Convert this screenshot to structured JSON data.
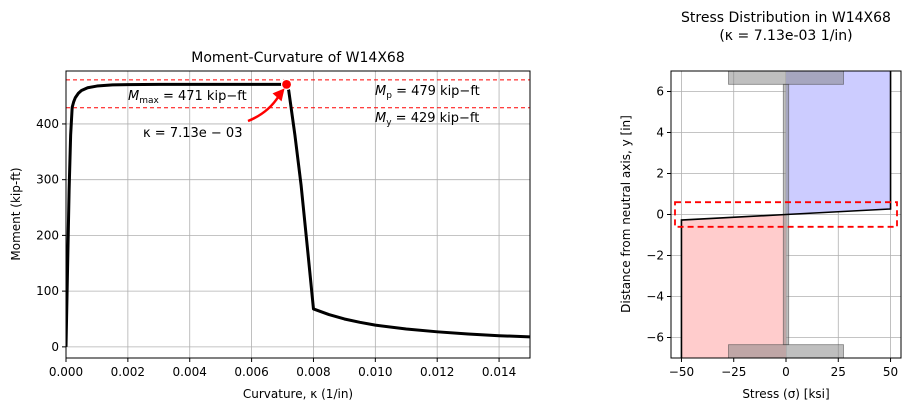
{
  "chart_data": [
    {
      "type": "line",
      "title": "Moment-Curvature of W14X68",
      "xlabel": "Curvature, κ (1/in)",
      "ylabel": "Moment (kip-ft)",
      "xlim": [
        0,
        0.015
      ],
      "ylim": [
        -20,
        495
      ],
      "xticks": [
        "0.000",
        "0.002",
        "0.004",
        "0.006",
        "0.008",
        "0.010",
        "0.012",
        "0.014"
      ],
      "xtick_values": [
        0,
        0.002,
        0.004,
        0.006,
        0.008,
        0.01,
        0.012,
        0.014
      ],
      "yticks": [
        "0",
        "100",
        "200",
        "300",
        "400"
      ],
      "ytick_values": [
        0,
        100,
        200,
        300,
        400
      ],
      "grid": true,
      "series": [
        {
          "color": "#000000",
          "x": [
            0,
            5e-05,
            0.0001,
            0.00015,
            0.0002,
            0.00025,
            0.0003,
            0.0004,
            0.0005,
            0.0007,
            0.001,
            0.0015,
            0.002,
            0.003,
            0.004,
            0.005,
            0.006,
            0.0065,
            0.007,
            0.00713,
            0.0072,
            0.0074,
            0.0076,
            0.0078,
            0.008,
            0.0085,
            0.009,
            0.0095,
            0.01,
            0.011,
            0.012,
            0.013,
            0.014,
            0.015
          ],
          "y": [
            0,
            140,
            280,
            380,
            430,
            440,
            447,
            455,
            460,
            465,
            468,
            470,
            470.5,
            471,
            471,
            471,
            471,
            471,
            471,
            471,
            460,
            380,
            290,
            180,
            68,
            58,
            50,
            44,
            39,
            32,
            27,
            23,
            20,
            18
          ]
        }
      ],
      "hlines": [
        {
          "y": 479,
          "color": "#ff0000"
        },
        {
          "y": 429,
          "color": "#ff0000"
        }
      ],
      "marker": {
        "x": 0.00713,
        "y": 471,
        "color": "#ff0000"
      },
      "annotations": {
        "mmax_sym": "M",
        "mmax_sub": "max",
        "mmax_val": " = 471 kip−ft",
        "mp_sym": "M",
        "mp_sub": "p",
        "mp_val": " = 479 kip−ft",
        "my_sym": "M",
        "my_sub": "y",
        "my_val": " = 429 kip−ft",
        "kappa": "κ = 7.13e − 03"
      },
      "arrow_color": "#ff0000"
    },
    {
      "type": "area",
      "title": "Stress Distribution in W14X68",
      "subtitle": "(κ = 7.13e-03 1/in)",
      "xlabel": "Stress (σ) [ksi]",
      "ylabel": "Distance from neutral axis, y [in]",
      "xlim": [
        -55,
        55
      ],
      "ylim": [
        -7.0,
        7.0
      ],
      "xticks": [
        "−50",
        "−25",
        "0",
        "25",
        "50"
      ],
      "xtick_values": [
        -50,
        -25,
        0,
        25,
        50
      ],
      "yticks": [
        "6",
        "4",
        "2",
        "0",
        "−2",
        "−4",
        "−6"
      ],
      "ytick_values": [
        6,
        4,
        2,
        0,
        -2,
        -4,
        -6
      ],
      "grid": true,
      "stress_profile": {
        "y": [
          -7.0,
          -0.27,
          0,
          0.27,
          7.0
        ],
        "stress": [
          -50,
          -50,
          0,
          50,
          50
        ],
        "line_color": "#000000"
      },
      "compression_fill": "#ccccff",
      "tension_fill": "#ffcccc",
      "elastic_core_box": {
        "y": [
          -0.6,
          0.6
        ],
        "color": "#ff0000"
      },
      "section_color": "#808080"
    }
  ]
}
